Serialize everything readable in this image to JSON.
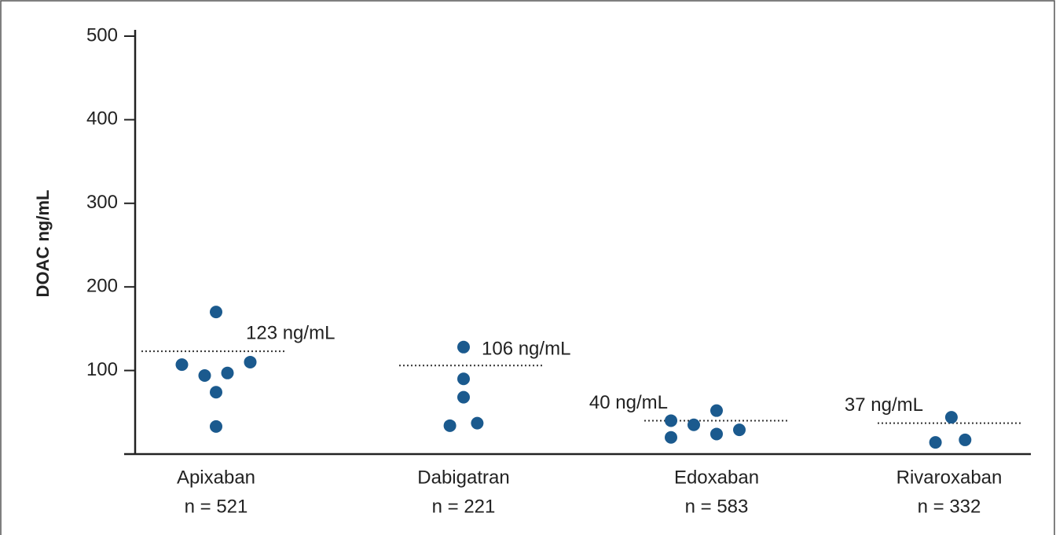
{
  "chart_data": {
    "type": "dot",
    "y_label": "DOAC ng/mL",
    "categories": [
      "Apixaban",
      "Dabigatran",
      "Edoxaban",
      "Rivaroxaban"
    ],
    "n_labels": [
      "n = 521",
      "n = 221",
      "n = 583",
      "n = 332"
    ],
    "values": [
      [
        107,
        94,
        97,
        110,
        170,
        74,
        33
      ],
      [
        128,
        90,
        68,
        34,
        37
      ],
      [
        40,
        35,
        52,
        20,
        24,
        29
      ],
      [
        44,
        14,
        17
      ]
    ],
    "medians": [
      123,
      106,
      40,
      37
    ],
    "median_labels": [
      "123 ng/mL",
      "106 ng/mL",
      "40 ng/mL",
      "37 ng/mL"
    ],
    "color": "#1b5a8e",
    "ylim": [
      0,
      500
    ],
    "yticks": [
      100,
      200,
      300,
      400,
      500
    ]
  }
}
